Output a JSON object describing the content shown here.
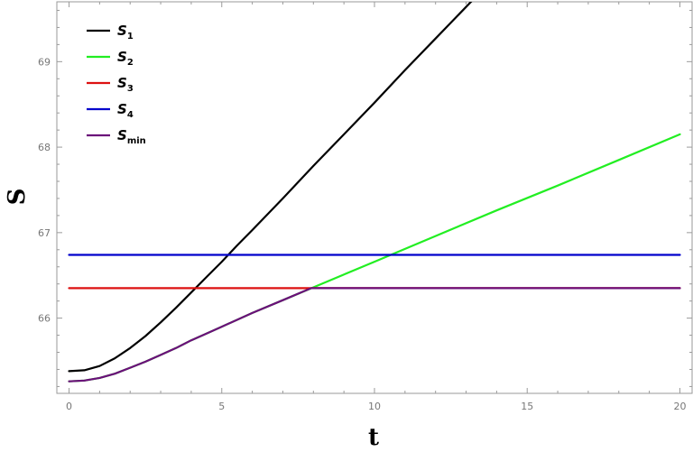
{
  "chart_data": {
    "type": "line",
    "xlabel": "t",
    "ylabel": "S",
    "xlim": [
      -0.4,
      20.4
    ],
    "ylim": [
      65.12,
      69.7
    ],
    "x_ticks": [
      0,
      5,
      10,
      15,
      20
    ],
    "x_tick_labels": [
      "0",
      "5",
      "10",
      "15",
      "20"
    ],
    "y_ticks": [
      66,
      67,
      68,
      69
    ],
    "y_tick_labels": [
      "66",
      "67",
      "68",
      "69"
    ],
    "x_minor_ticks": [
      1,
      2,
      3,
      4,
      6,
      7,
      8,
      9,
      11,
      12,
      13,
      14,
      16,
      17,
      18,
      19
    ],
    "y_minor_ticks": [
      65.2,
      65.4,
      65.6,
      65.8,
      66.2,
      66.4,
      66.6,
      66.8,
      67.2,
      67.4,
      67.6,
      67.8,
      68.2,
      68.4,
      68.6,
      68.8,
      69.2,
      69.4,
      69.6
    ],
    "grid": false,
    "legend_position": "top-left",
    "series": [
      {
        "name": "S",
        "subscript": "1",
        "color": "#000000",
        "x": [
          0,
          0.5,
          1,
          1.5,
          2,
          2.5,
          3,
          3.5,
          4,
          4.5,
          5,
          5.5,
          6,
          7,
          8,
          9,
          10,
          11,
          12,
          13,
          13.7
        ],
        "y": [
          65.38,
          65.39,
          65.44,
          65.53,
          65.65,
          65.79,
          65.95,
          66.12,
          66.3,
          66.48,
          66.66,
          66.85,
          67.03,
          67.4,
          67.78,
          68.15,
          68.52,
          68.9,
          69.27,
          69.64,
          69.9
        ]
      },
      {
        "name": "S",
        "subscript": "2",
        "color": "#22ee22",
        "x": [
          0,
          0.5,
          1,
          1.5,
          2,
          2.5,
          3,
          3.5,
          4,
          4.5,
          5,
          6,
          7,
          8,
          10,
          12,
          14,
          16,
          18,
          20
        ],
        "y": [
          65.26,
          65.27,
          65.3,
          65.35,
          65.42,
          65.49,
          65.57,
          65.65,
          65.74,
          65.82,
          65.9,
          66.06,
          66.21,
          66.36,
          66.66,
          66.96,
          67.26,
          67.55,
          67.85,
          68.15
        ]
      },
      {
        "name": "S",
        "subscript": "3",
        "color": "#dd1111",
        "x": [
          0,
          20
        ],
        "y": [
          66.35,
          66.35
        ]
      },
      {
        "name": "S",
        "subscript": "4",
        "color": "#0000cc",
        "x": [
          0,
          20
        ],
        "y": [
          66.74,
          66.74
        ]
      },
      {
        "name": "S",
        "subscript": "min",
        "color": "#6b0f7a",
        "x": [
          0,
          0.5,
          1,
          1.5,
          2,
          2.5,
          3,
          3.5,
          4,
          4.5,
          5,
          6,
          7,
          7.93,
          10,
          15,
          20
        ],
        "y": [
          65.26,
          65.27,
          65.3,
          65.35,
          65.42,
          65.49,
          65.57,
          65.65,
          65.74,
          65.82,
          65.9,
          66.06,
          66.21,
          66.35,
          66.35,
          66.35,
          66.35
        ]
      }
    ]
  }
}
